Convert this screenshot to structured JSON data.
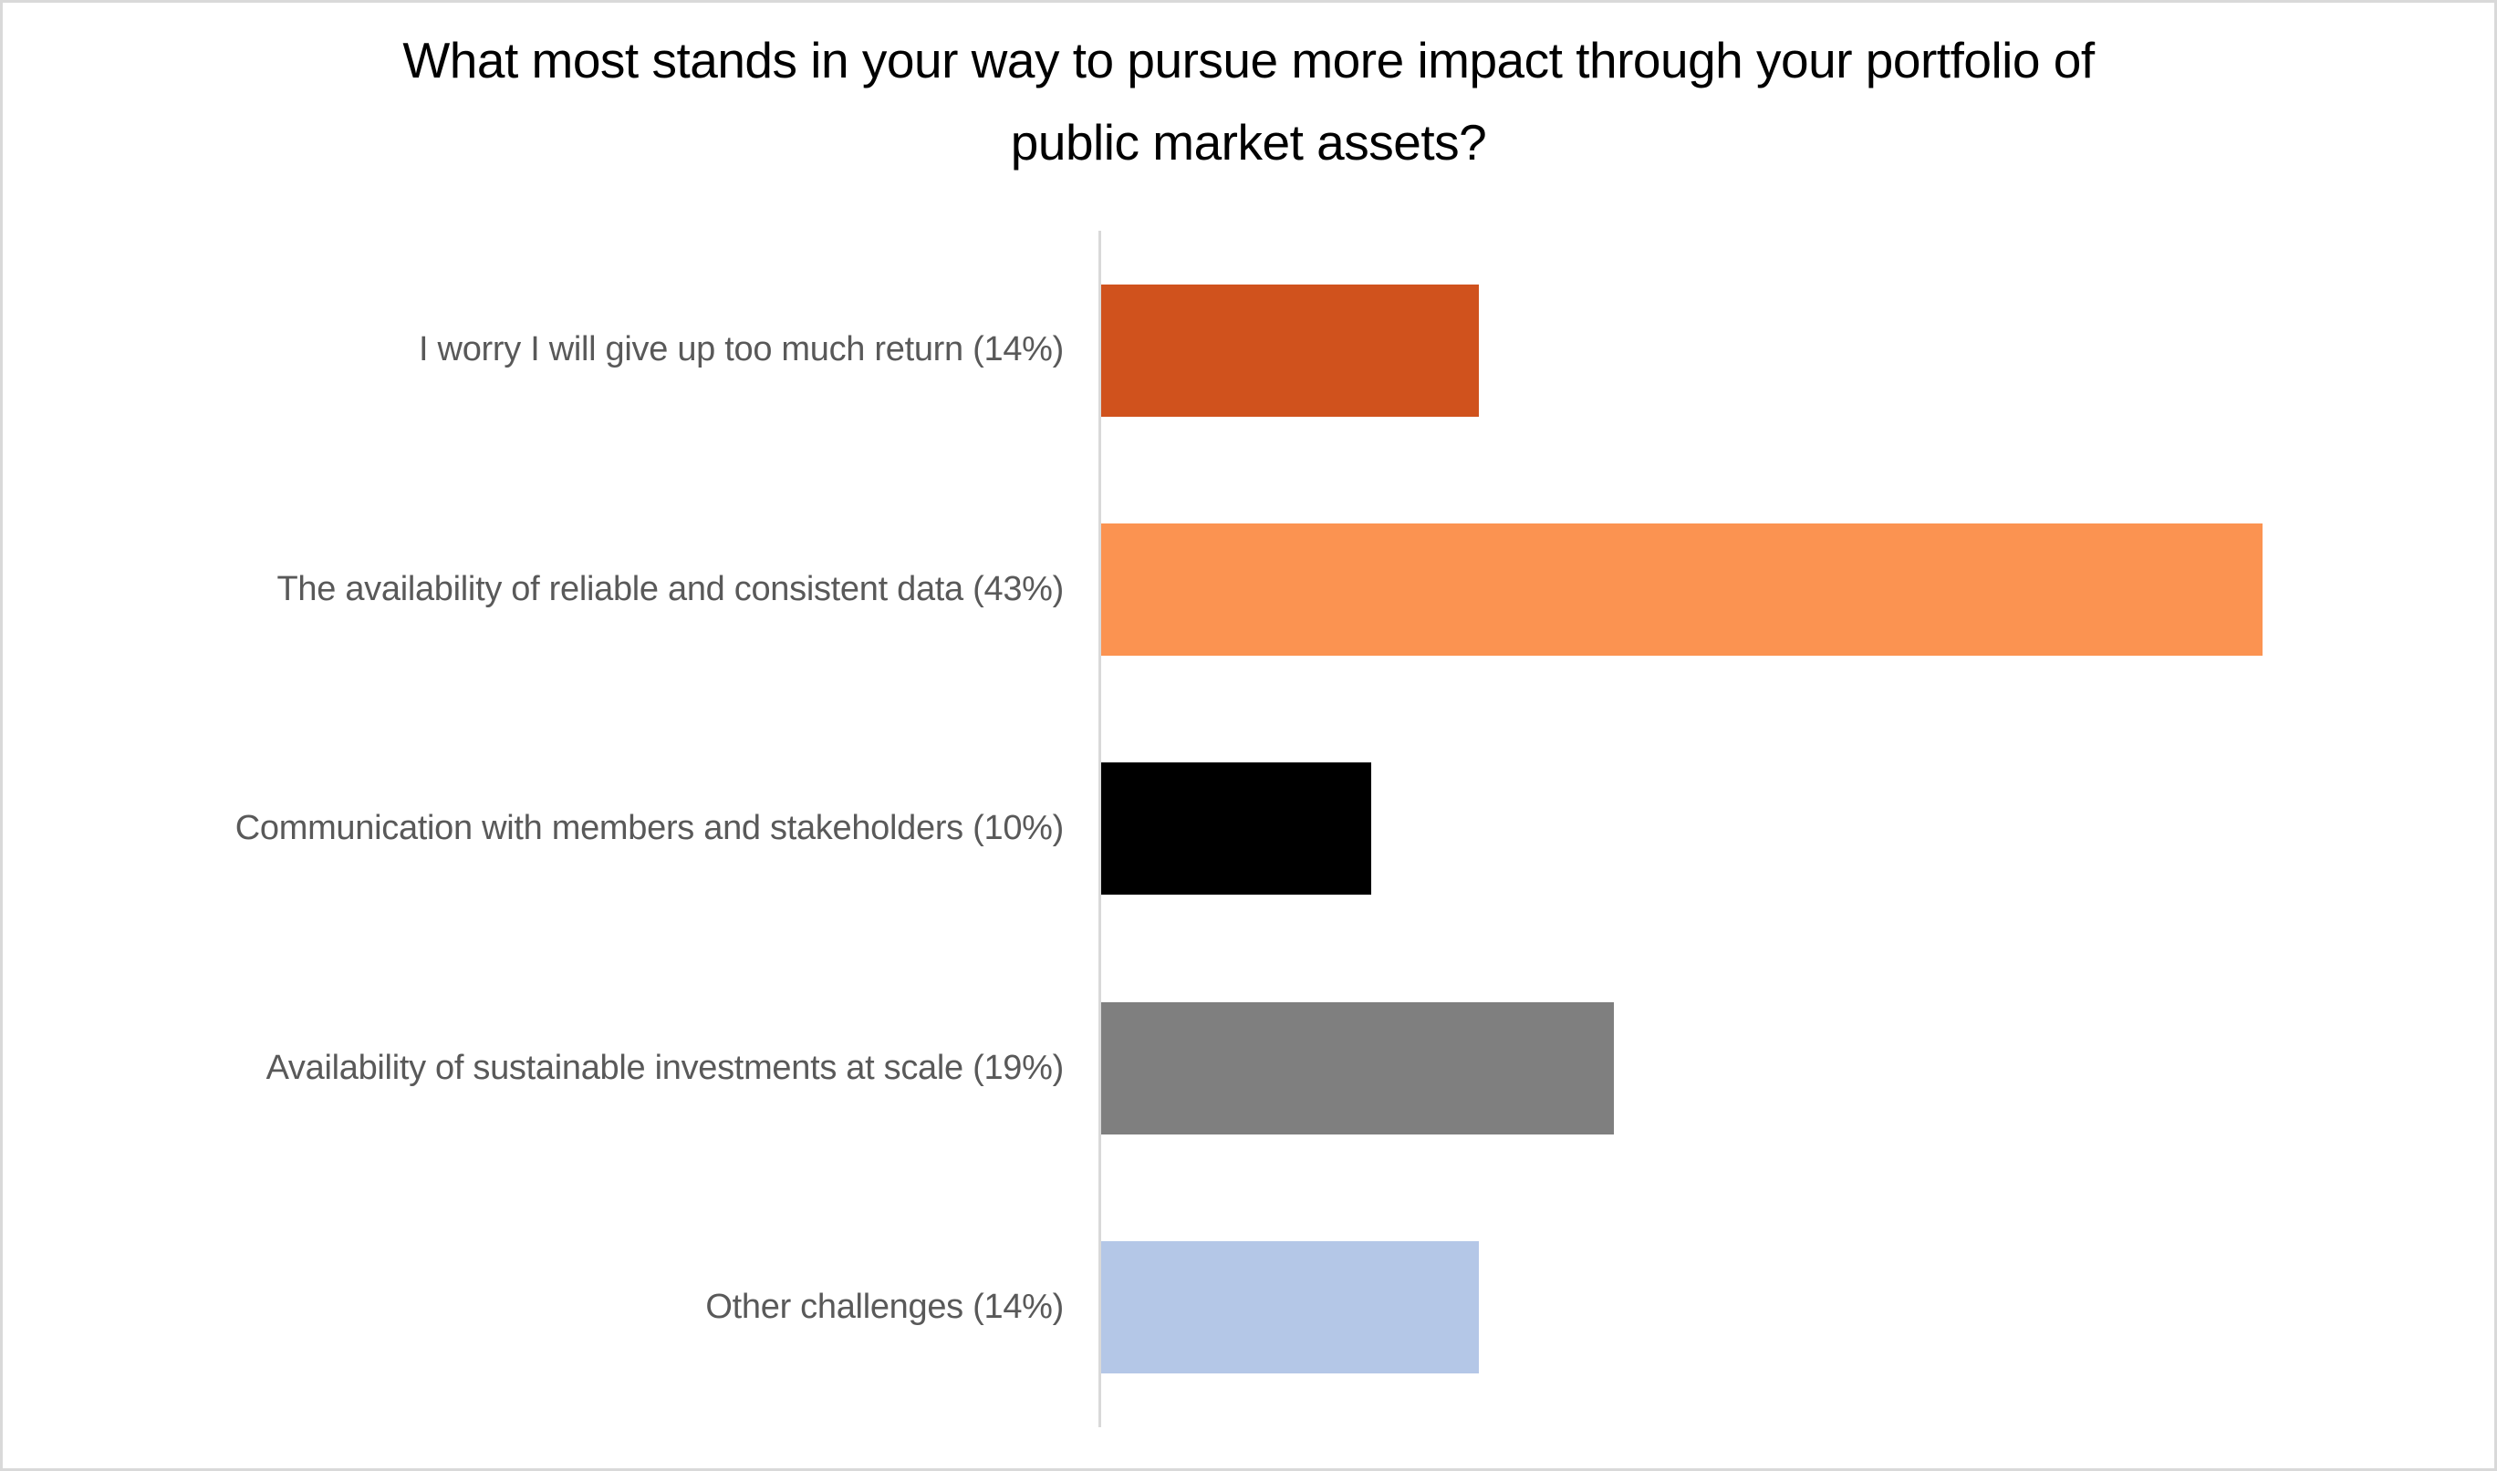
{
  "header": {
    "title_line1": "What most stands in your way to pursue more impact through your portfolio of",
    "title_line2": "public market assets?"
  },
  "chart_data": {
    "type": "bar",
    "orientation": "horizontal",
    "title": "What most stands in your way to pursue more impact through your portfolio of public market assets?",
    "categories": [
      "I worry I will give up too much return (14%)",
      "The availability of reliable and consistent data (43%)",
      "Communication with members and stakeholders (10%)",
      "Availability of sustainable investments at scale (19%)",
      "Other challenges (14%)"
    ],
    "values": [
      14,
      43,
      10,
      19,
      14
    ],
    "unit": "%",
    "colors": [
      "#D0521D",
      "#FB9351",
      "#000000",
      "#7F7F7F",
      "#B4C7E7"
    ],
    "xlim": [
      0,
      45
    ],
    "xlabel": "",
    "ylabel": "",
    "grid": false,
    "legend": false,
    "axis_color": "#D9D9D9",
    "label_color": "#595959",
    "title_color": "#000000"
  }
}
